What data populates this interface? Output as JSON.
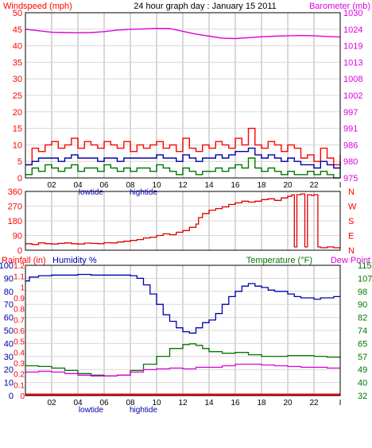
{
  "header": {
    "left_label": "Windspeed (mph)",
    "center_title": "24 hour graph day : January 15 2011",
    "right_label": "Barometer (mb)"
  },
  "colors": {
    "windspeed": "#ff0000",
    "gust": "#ff0000",
    "average": "#0000aa",
    "minimum": "#007700",
    "barometer": "#dd00dd",
    "direction": "#dd0000",
    "humidity": "#0000aa",
    "temperature": "#007700",
    "dewpoint": "#dd00dd",
    "rainfall": "#ff0000",
    "axis_red": "#ff0000",
    "axis_blue": "#0000aa",
    "axis_green": "#007700",
    "axis_magenta": "#dd00dd",
    "grid": "#d8d8d8",
    "frame": "#000000"
  },
  "chart_data": [
    {
      "type": "line",
      "name": "wind-barometer",
      "x_ticks": [
        "02",
        "04",
        "06",
        "08",
        "10",
        "12",
        "14",
        "16",
        "18",
        "20",
        "22",
        "I"
      ],
      "x_annotations": [
        "lowtide",
        "hightide"
      ],
      "y_left_ticks": [
        0,
        5,
        10,
        15,
        20,
        25,
        30,
        35,
        40,
        45,
        50
      ],
      "y_left_range": [
        0,
        50
      ],
      "y_right_ticks": [
        975,
        980,
        986,
        991,
        997,
        1002,
        1008,
        1013,
        1019,
        1024,
        1030
      ],
      "y_right_range": [
        975,
        1030
      ],
      "x_range": [
        0,
        24
      ],
      "grid": true,
      "series": [
        {
          "key": "gust",
          "axis": "left",
          "x": [
            0,
            0.5,
            1,
            1.5,
            2,
            2.5,
            3,
            3.5,
            4,
            4.5,
            5,
            5.5,
            6,
            6.5,
            7,
            7.5,
            8,
            8.5,
            9,
            9.5,
            10,
            10.5,
            11,
            11.5,
            12,
            12.5,
            13,
            13.5,
            14,
            14.5,
            15,
            15.5,
            16,
            16.5,
            17,
            17.5,
            18,
            18.5,
            19,
            19.5,
            20,
            20.5,
            21,
            21.5,
            22,
            22.5,
            23,
            23.5,
            24
          ],
          "y": [
            4,
            9,
            8,
            10,
            11,
            9,
            10,
            12,
            9,
            11,
            10,
            9,
            11,
            10,
            9,
            11,
            8,
            10,
            9,
            10,
            11,
            9,
            10,
            8,
            12,
            9,
            8,
            10,
            9,
            11,
            10,
            9,
            12,
            10,
            15,
            10,
            9,
            11,
            10,
            8,
            10,
            9,
            6,
            7,
            5,
            9,
            6,
            4,
            7
          ]
        },
        {
          "key": "average",
          "axis": "left",
          "x": [
            0,
            0.5,
            1,
            1.5,
            2,
            2.5,
            3,
            3.5,
            4,
            4.5,
            5,
            5.5,
            6,
            6.5,
            7,
            7.5,
            8,
            8.5,
            9,
            9.5,
            10,
            10.5,
            11,
            11.5,
            12,
            12.5,
            13,
            13.5,
            14,
            14.5,
            15,
            15.5,
            16,
            16.5,
            17,
            17.5,
            18,
            18.5,
            19,
            19.5,
            20,
            20.5,
            21,
            21.5,
            22,
            22.5,
            23,
            23.5,
            24
          ],
          "y": [
            4,
            5,
            6,
            6,
            6,
            5,
            6,
            7,
            6,
            6,
            6,
            5,
            6,
            6,
            5,
            6,
            6,
            6,
            6,
            6,
            7,
            6,
            6,
            5,
            7,
            6,
            5,
            6,
            6,
            7,
            6,
            7,
            8,
            8,
            9,
            7,
            6,
            7,
            6,
            5,
            6,
            5,
            4,
            4,
            3,
            5,
            4,
            3,
            5
          ]
        },
        {
          "key": "minimum",
          "axis": "left",
          "x": [
            0,
            0.5,
            1,
            1.5,
            2,
            2.5,
            3,
            3.5,
            4,
            4.5,
            5,
            5.5,
            6,
            6.5,
            7,
            7.5,
            8,
            8.5,
            9,
            9.5,
            10,
            10.5,
            11,
            11.5,
            12,
            12.5,
            13,
            13.5,
            14,
            14.5,
            15,
            15.5,
            16,
            16.5,
            17,
            17.5,
            18,
            18.5,
            19,
            19.5,
            20,
            20.5,
            21,
            21.5,
            22,
            22.5,
            23,
            23.5,
            24
          ],
          "y": [
            1,
            3,
            2,
            4,
            3,
            2,
            3,
            4,
            2,
            3,
            3,
            2,
            4,
            3,
            2,
            3,
            2,
            3,
            3,
            2,
            4,
            3,
            2,
            1,
            3,
            2,
            1,
            2,
            2,
            3,
            2,
            3,
            4,
            3,
            6,
            3,
            2,
            3,
            2,
            1,
            2,
            1,
            1,
            2,
            1,
            2,
            1,
            0,
            3
          ]
        },
        {
          "key": "barometer",
          "axis": "right",
          "x": [
            0,
            1,
            2,
            3,
            4,
            5,
            6,
            7,
            8,
            9,
            10,
            11,
            12,
            13,
            14,
            15,
            16,
            17,
            18,
            19,
            20,
            21,
            22,
            23,
            24
          ],
          "y": [
            1024.5,
            1024,
            1023.5,
            1023.4,
            1023.3,
            1023.4,
            1023.7,
            1024.2,
            1024.5,
            1024.6,
            1024.8,
            1024.7,
            1023.8,
            1022.9,
            1022.2,
            1021.5,
            1021.4,
            1021.7,
            1022,
            1022.2,
            1022.3,
            1022.4,
            1022.3,
            1022.1,
            1021.9
          ]
        }
      ]
    },
    {
      "type": "scatter",
      "name": "wind-direction",
      "y_left_ticks": [
        0,
        90,
        180,
        270,
        360
      ],
      "y_left_range": [
        0,
        360
      ],
      "y_right_ticks": [
        "N",
        "W",
        "S",
        "E",
        "N"
      ],
      "x_range": [
        0,
        24
      ],
      "series": [
        {
          "key": "direction",
          "axis": "left",
          "x": [
            0,
            0.5,
            1,
            1.5,
            2,
            2.5,
            3,
            3.5,
            4,
            4.5,
            5,
            5.5,
            6,
            6.5,
            7,
            7.5,
            8,
            8.5,
            9,
            9.5,
            10,
            10.5,
            11,
            11.5,
            12,
            12.5,
            13,
            13.2,
            13.5,
            14,
            14.5,
            15,
            15.5,
            16,
            16.5,
            17,
            17.5,
            18,
            18.5,
            19,
            19.5,
            20,
            20.3,
            20.5,
            20.7,
            21,
            21.3,
            21.5,
            21.8,
            22,
            22.3,
            22.5,
            23,
            23.5,
            24
          ],
          "y": [
            40,
            35,
            45,
            40,
            38,
            42,
            45,
            40,
            38,
            44,
            42,
            40,
            46,
            45,
            50,
            55,
            60,
            65,
            75,
            80,
            90,
            100,
            95,
            110,
            120,
            140,
            160,
            200,
            225,
            245,
            255,
            265,
            280,
            290,
            300,
            295,
            300,
            310,
            315,
            305,
            320,
            330,
            340,
            20,
            340,
            345,
            20,
            340,
            335,
            340,
            20,
            15,
            20,
            15,
            15
          ]
        }
      ]
    },
    {
      "type": "line",
      "name": "humidity-temperature",
      "left_header": "Rainfall (in)",
      "left_header2": "Humidity %",
      "right_header": "Temperature (°F)",
      "right_header2": "Dew Point",
      "y_humidity_ticks": [
        0,
        10,
        20,
        30,
        40,
        50,
        60,
        70,
        80,
        90,
        100
      ],
      "y_rain_ticks": [
        0,
        0.1,
        0.2,
        0.3,
        0.4,
        0.5,
        0.6,
        0.7,
        0.8,
        0.9,
        1.0,
        1.1,
        1.2
      ],
      "y_temp_ticks": [
        32,
        40,
        49,
        57,
        65,
        74,
        82,
        90,
        98,
        107,
        115
      ],
      "y_temp_range": [
        32,
        115
      ],
      "x_range": [
        0,
        24
      ],
      "series": [
        {
          "key": "humidity",
          "axis": "humidity",
          "x": [
            0,
            0.3,
            1,
            2,
            3,
            4,
            5,
            6,
            7,
            8,
            8.5,
            9,
            9.5,
            10,
            10.5,
            11,
            11.5,
            12,
            12.5,
            13,
            13.5,
            14,
            14.5,
            15,
            15.5,
            16,
            16.5,
            17,
            17.5,
            18,
            18.5,
            19,
            19.5,
            20,
            20.5,
            21,
            21.5,
            22,
            22.5,
            23,
            23.5,
            24
          ],
          "y": [
            88,
            91,
            92,
            92.5,
            92.5,
            93,
            92.5,
            92.5,
            92.5,
            92,
            90,
            85,
            78,
            70,
            62,
            57,
            52,
            49,
            48,
            52,
            56,
            58,
            63,
            70,
            76,
            80,
            84,
            86,
            84,
            83,
            81,
            80,
            80,
            78,
            76,
            75,
            75,
            74,
            75,
            75,
            76,
            76
          ]
        },
        {
          "key": "temperature",
          "axis": "temp",
          "x": [
            0,
            1,
            2,
            3,
            4,
            5,
            6,
            7,
            8,
            9,
            10,
            11,
            12,
            12.5,
            13,
            13.5,
            14,
            15,
            16,
            17,
            18,
            19,
            20,
            21,
            22,
            23,
            24
          ],
          "y": [
            51,
            50.5,
            49.5,
            48,
            46,
            45,
            44.5,
            45,
            48,
            52,
            57,
            62,
            64.5,
            65,
            64,
            62,
            60,
            59,
            59.5,
            58,
            57,
            57,
            57.5,
            57.5,
            57,
            56.5,
            56
          ]
        },
        {
          "key": "dewpoint",
          "axis": "temp",
          "x": [
            0,
            1,
            2,
            3,
            4,
            5,
            6,
            7,
            8,
            9,
            10,
            11,
            12,
            13,
            14,
            15,
            16,
            17,
            18,
            19,
            20,
            21,
            22,
            23,
            24
          ],
          "y": [
            47,
            47.5,
            47,
            46,
            45,
            44.5,
            44.5,
            45,
            47,
            48.5,
            49,
            49.5,
            49,
            50,
            50,
            51,
            52,
            52,
            51.5,
            51,
            50.5,
            50,
            50,
            49.5,
            49.5
          ]
        },
        {
          "key": "rainfall",
          "axis": "rain",
          "x": [
            0,
            24
          ],
          "y": [
            0,
            0
          ]
        }
      ]
    }
  ]
}
